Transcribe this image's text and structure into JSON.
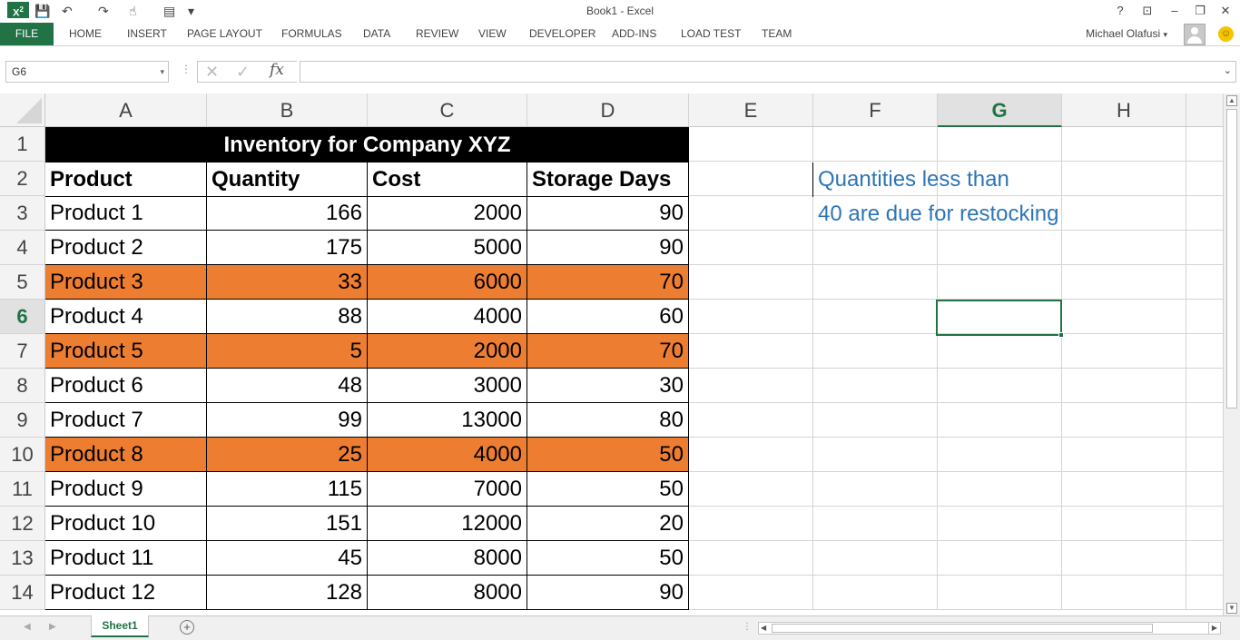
{
  "window": {
    "title": "Book1 - Excel",
    "logo_text": "X",
    "logo_badge": "2",
    "help": "?",
    "restore_ribbon": "⊡",
    "minimize": "–",
    "restore": "❐",
    "close": "✕"
  },
  "quick_access": {
    "save_icon": "💾",
    "undo": "↶",
    "redo": "↷",
    "touch": "☝",
    "form": "▤",
    "more": "▾"
  },
  "ribbon": {
    "file": "FILE",
    "tabs": [
      "HOME",
      "INSERT",
      "PAGE LAYOUT",
      "FORMULAS",
      "DATA",
      "REVIEW",
      "VIEW",
      "DEVELOPER",
      "ADD-INS",
      "LOAD TEST",
      "TEAM"
    ],
    "user": "Michael Olafusi",
    "user_arrow": "▾",
    "smiley": "☺"
  },
  "formula_bar": {
    "name_box": "G6",
    "name_box_arrow": "▾",
    "dots": "⋮",
    "cancel": "✕",
    "enter": "✓",
    "fx": "fx",
    "value": "",
    "expand": "⌄"
  },
  "columns": [
    {
      "label": "A",
      "selected": false
    },
    {
      "label": "B",
      "selected": false
    },
    {
      "label": "C",
      "selected": false
    },
    {
      "label": "D",
      "selected": false
    },
    {
      "label": "E",
      "selected": false
    },
    {
      "label": "F",
      "selected": false
    },
    {
      "label": "G",
      "selected": true
    },
    {
      "label": "H",
      "selected": false
    }
  ],
  "rows": [
    "1",
    "2",
    "3",
    "4",
    "5",
    "6",
    "7",
    "8",
    "9",
    "10",
    "11",
    "12",
    "13",
    "14"
  ],
  "selected_row": "6",
  "sheet": {
    "title": "Inventory for Company XYZ",
    "headers": [
      "Product",
      "Quantity",
      "Cost",
      "Storage Days"
    ],
    "data": [
      {
        "product": "Product 1",
        "quantity": "166",
        "cost": "2000",
        "days": "90",
        "highlight": false
      },
      {
        "product": "Product 2",
        "quantity": "175",
        "cost": "5000",
        "days": "90",
        "highlight": false
      },
      {
        "product": "Product 3",
        "quantity": "33",
        "cost": "6000",
        "days": "70",
        "highlight": true
      },
      {
        "product": "Product 4",
        "quantity": "88",
        "cost": "4000",
        "days": "60",
        "highlight": false
      },
      {
        "product": "Product 5",
        "quantity": "5",
        "cost": "2000",
        "days": "70",
        "highlight": true
      },
      {
        "product": "Product 6",
        "quantity": "48",
        "cost": "3000",
        "days": "30",
        "highlight": false
      },
      {
        "product": "Product 7",
        "quantity": "99",
        "cost": "13000",
        "days": "80",
        "highlight": false
      },
      {
        "product": "Product 8",
        "quantity": "25",
        "cost": "4000",
        "days": "50",
        "highlight": true
      },
      {
        "product": "Product 9",
        "quantity": "115",
        "cost": "7000",
        "days": "50",
        "highlight": false
      },
      {
        "product": "Product 10",
        "quantity": "151",
        "cost": "12000",
        "days": "20",
        "highlight": false
      },
      {
        "product": "Product 11",
        "quantity": "45",
        "cost": "8000",
        "days": "50",
        "highlight": false
      },
      {
        "product": "Product 12",
        "quantity": "128",
        "cost": "8000",
        "days": "90",
        "highlight": false
      }
    ],
    "note_line1": "Quantities less than",
    "note_line2": "40 are due for restocking",
    "highlight_color": "#ed7d31",
    "note_color": "#2e75b6"
  },
  "sheet_tabs": {
    "nav_prev": "◀",
    "nav_next": "▶",
    "active": "Sheet1",
    "add": "+",
    "dots": "⋮",
    "scroll_left": "◀",
    "scroll_right": "▶"
  },
  "vscroll": {
    "up": "▲",
    "down": "▼"
  },
  "theme": {
    "accent": "#217346"
  }
}
